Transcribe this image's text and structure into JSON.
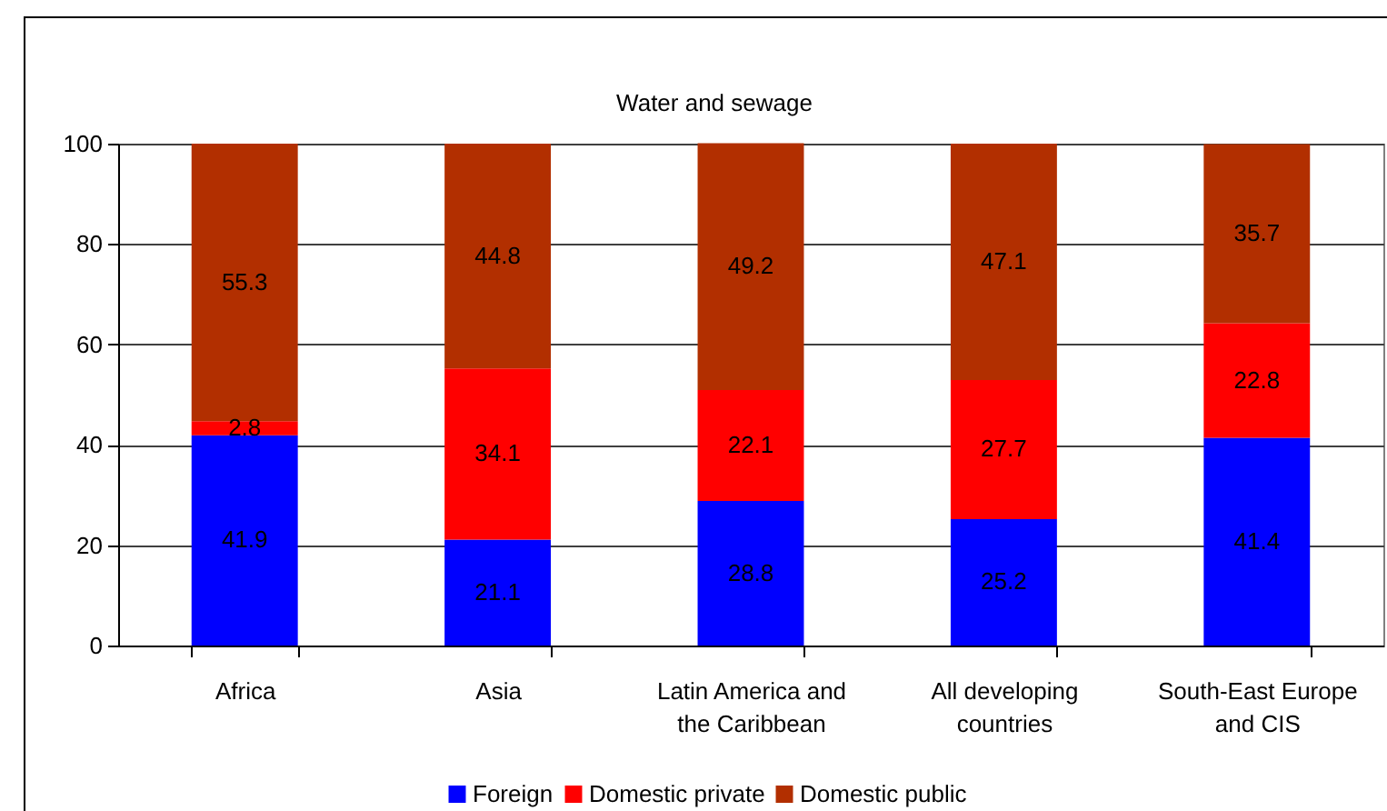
{
  "chart_data": {
    "type": "bar",
    "title": "Water and sewage",
    "categories": [
      "Africa",
      "Asia",
      "Latin America and the Caribbean",
      "All developing countries",
      "South-East Europe and CIS"
    ],
    "series": [
      {
        "name": "Foreign",
        "color": "#0000ff",
        "values": [
          41.9,
          21.1,
          28.8,
          25.2,
          41.4
        ]
      },
      {
        "name": "Domestic private",
        "color": "#ff0000",
        "values": [
          2.8,
          34.1,
          22.1,
          27.7,
          22.8
        ]
      },
      {
        "name": "Domestic public",
        "color": "#b22f00",
        "values": [
          55.3,
          44.8,
          49.2,
          47.1,
          35.7
        ]
      }
    ],
    "stacked": true,
    "ylim": [
      0,
      100
    ],
    "yticks": [
      0,
      20,
      40,
      60,
      80,
      100
    ],
    "grid": "y",
    "legend": "bottom",
    "data_labels": true
  }
}
